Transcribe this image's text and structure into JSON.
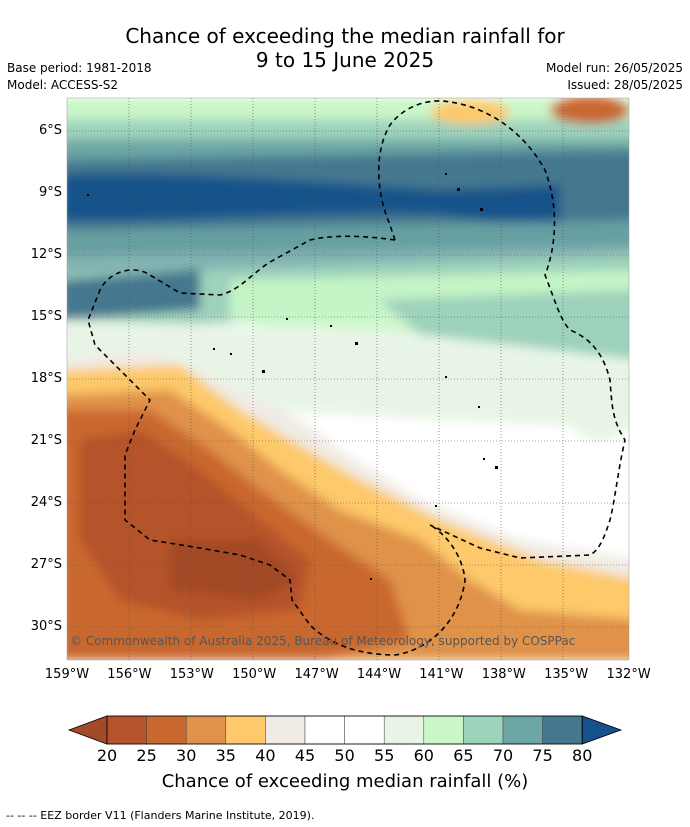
{
  "title_line1": "Chance of exceeding the median rainfall for",
  "title_line2": "9 to 15 June 2025",
  "meta": {
    "base_period": "Base period: 1981-2018",
    "model": "Model: ACCESS-S2",
    "model_run": "Model run: 26/05/2025",
    "issued": "Issued: 28/05/2025"
  },
  "copyright": "© Commonwealth of Australia 2025, Bureau of Meteorology, supported by COSPPac",
  "lat_labels": [
    "6°S",
    "9°S",
    "12°S",
    "15°S",
    "18°S",
    "21°S",
    "24°S",
    "27°S",
    "30°S"
  ],
  "lon_labels": [
    "159°W",
    "156°W",
    "153°W",
    "150°W",
    "147°W",
    "144°W",
    "141°W",
    "138°W",
    "135°W",
    "132°W"
  ],
  "colorbar": {
    "ticks": [
      "20",
      "25",
      "30",
      "35",
      "40",
      "45",
      "50",
      "55",
      "60",
      "65",
      "70",
      "75",
      "80"
    ],
    "colors": [
      "#a34a28",
      "#b5532a",
      "#c9672f",
      "#e0924a",
      "#fdc96b",
      "#f0ebe4",
      "#ffffff",
      "#ffffff",
      "#e8f5e6",
      "#c9f7c8",
      "#9dd2bb",
      "#6ca6a5",
      "#44788f",
      "#15528b"
    ],
    "title": "Chance of exceeding median rainfall (%)"
  },
  "eez_note": "--  --  -- EEZ border V11 (Flanders Marine Institute, 2019)."
}
